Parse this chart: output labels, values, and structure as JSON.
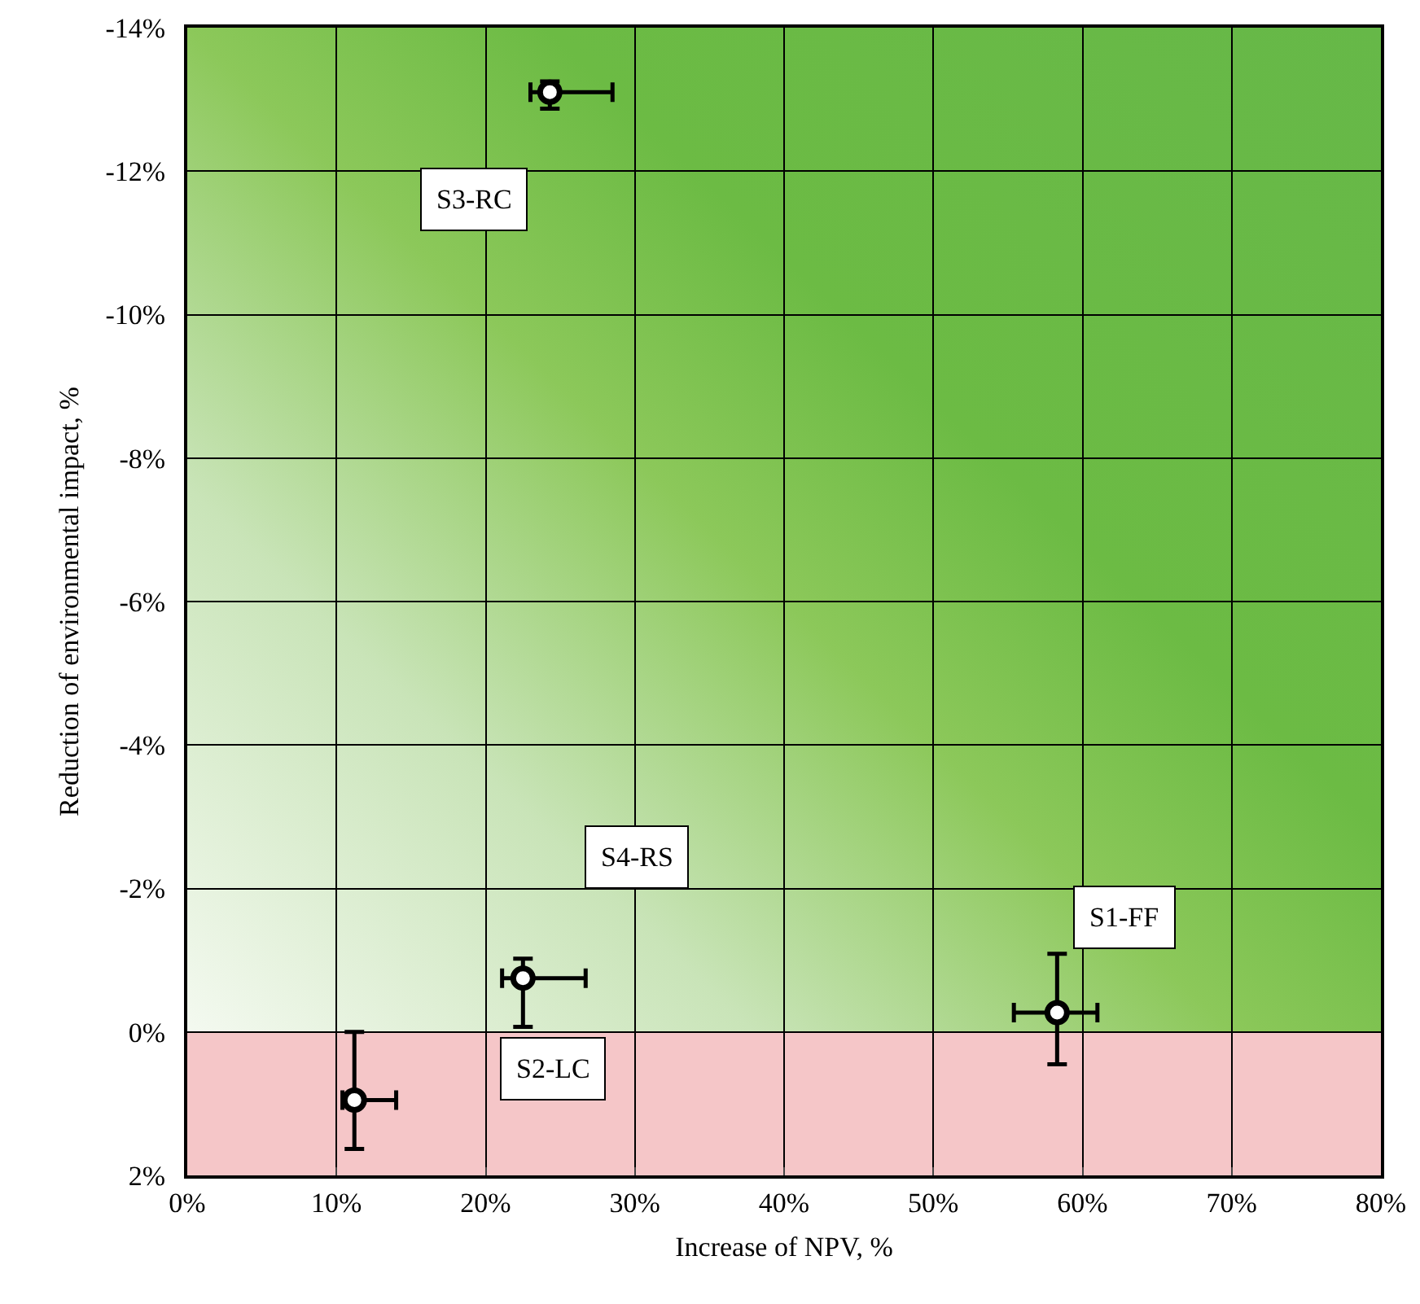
{
  "chart_data": {
    "type": "scatter",
    "xlabel": "Increase of NPV, %",
    "ylabel": "Reduction of environmental impact, %",
    "x": [
      24.3,
      22.5,
      11.2,
      58.3
    ],
    "values": [
      -13.1,
      -0.75,
      0.95,
      -0.27
    ],
    "xerrors": [
      [
        23.0,
        28.5
      ],
      [
        21.1,
        26.7
      ],
      [
        10.4,
        14.0
      ],
      [
        55.4,
        61.0
      ]
    ],
    "errors": [
      [
        -13.25,
        -12.87
      ],
      [
        -1.02,
        -0.07
      ],
      [
        0.0,
        1.63
      ],
      [
        -1.09,
        0.45
      ]
    ],
    "color": "#000000",
    "marker": "circle",
    "xlim": [
      0,
      80
    ],
    "xticks": [
      {
        "value": 0,
        "label": "0%"
      },
      {
        "value": 10,
        "label": "10%"
      },
      {
        "value": 20,
        "label": "20%"
      },
      {
        "value": 30,
        "label": "30%"
      },
      {
        "value": 40,
        "label": "40%"
      },
      {
        "value": 50,
        "label": "50%"
      },
      {
        "value": 60,
        "label": "60%"
      },
      {
        "value": 70,
        "label": "70%"
      },
      {
        "value": 80,
        "label": "80%"
      }
    ],
    "ylim": [
      2,
      -14
    ],
    "yticks": [
      {
        "value": -14,
        "label": "-14%"
      },
      {
        "value": -12,
        "label": "-12%"
      },
      {
        "value": -10,
        "label": "-10%"
      },
      {
        "value": -8,
        "label": "-8%"
      },
      {
        "value": -6,
        "label": "-6%"
      },
      {
        "value": -4,
        "label": "-4%"
      },
      {
        "value": -2,
        "label": "-2%"
      },
      {
        "value": 0,
        "label": "0%"
      },
      {
        "value": 2,
        "label": "2%"
      }
    ],
    "grid": true,
    "bands": [
      {
        "axis": "y",
        "from": 0,
        "to": 2,
        "color": "#f5c6c8"
      }
    ],
    "annotations": [
      "S3-RC",
      "S4-RS",
      "S1-FF",
      "S2-LC"
    ]
  }
}
